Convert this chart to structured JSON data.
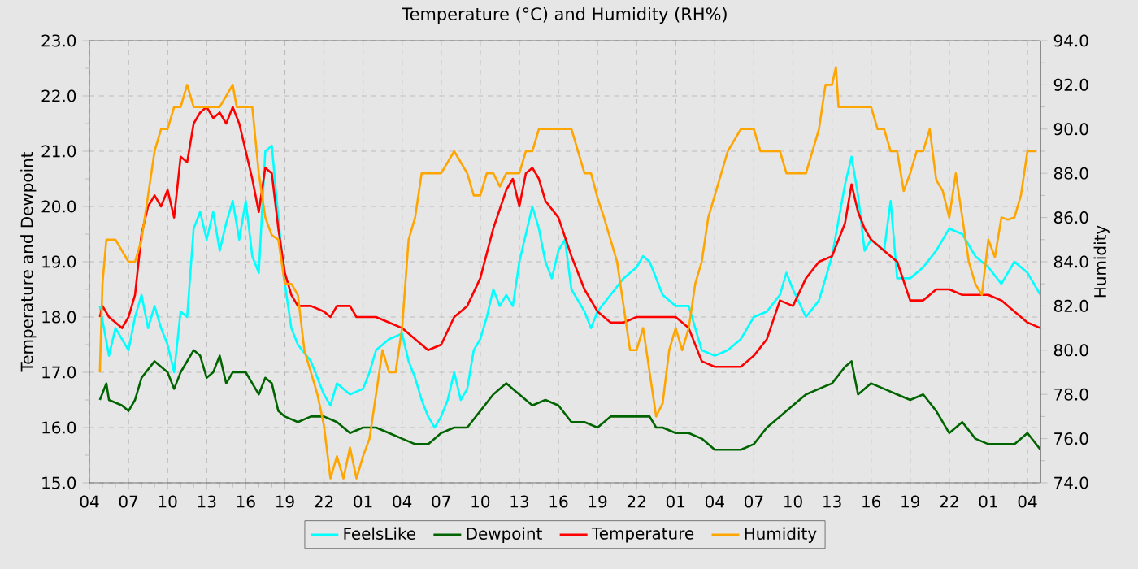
{
  "chart_data": {
    "type": "line",
    "title": "Temperature (°C) and Humidity (RH%)",
    "ylabel": "Temperature and Dewpoint",
    "y2label": "Humidity",
    "xlim": [
      "--01-01T04:00",
      "--01-04T05:00"
    ],
    "xticks": [
      {
        "value": "--01-01T04:00",
        "label": "04"
      },
      {
        "value": "--01-01T07:00",
        "label": "07"
      },
      {
        "value": "--01-01T10:00",
        "label": "10"
      },
      {
        "value": "--01-01T13:00",
        "label": "13"
      },
      {
        "value": "--01-01T16:00",
        "label": "16"
      },
      {
        "value": "--01-01T19:00",
        "label": "19"
      },
      {
        "value": "--01-01T22:00",
        "label": "22"
      },
      {
        "value": "--01-02T01:00",
        "label": "01"
      },
      {
        "value": "--01-02T04:00",
        "label": "04"
      },
      {
        "value": "--01-02T07:00",
        "label": "07"
      },
      {
        "value": "--01-02T10:00",
        "label": "10"
      },
      {
        "value": "--01-02T13:00",
        "label": "13"
      },
      {
        "value": "--01-02T16:00",
        "label": "16"
      },
      {
        "value": "--01-02T19:00",
        "label": "19"
      },
      {
        "value": "--01-02T22:00",
        "label": "22"
      },
      {
        "value": "--01-03T01:00",
        "label": "01"
      },
      {
        "value": "--01-03T04:00",
        "label": "04"
      },
      {
        "value": "--01-03T07:00",
        "label": "07"
      },
      {
        "value": "--01-03T10:00",
        "label": "10"
      },
      {
        "value": "--01-03T13:00",
        "label": "13"
      },
      {
        "value": "--01-03T16:00",
        "label": "16"
      },
      {
        "value": "--01-03T19:00",
        "label": "19"
      },
      {
        "value": "--01-03T22:00",
        "label": "22"
      },
      {
        "value": "--01-04T01:00",
        "label": "01"
      },
      {
        "value": "--01-04T04:00",
        "label": "04"
      }
    ],
    "ylim": [
      15,
      23
    ],
    "yticks": [
      {
        "value": 15,
        "label": "15.0"
      },
      {
        "value": 16,
        "label": "16.0"
      },
      {
        "value": 17,
        "label": "17.0"
      },
      {
        "value": 18,
        "label": "18.0"
      },
      {
        "value": 19,
        "label": "19.0"
      },
      {
        "value": 20,
        "label": "20.0"
      },
      {
        "value": 21,
        "label": "21.0"
      },
      {
        "value": 22,
        "label": "22.0"
      },
      {
        "value": 23,
        "label": "23.0"
      }
    ],
    "y2lim": [
      74,
      94
    ],
    "y2ticks": [
      {
        "value": 74,
        "label": "74.0"
      },
      {
        "value": 76,
        "label": "76.0"
      },
      {
        "value": 78,
        "label": "78.0"
      },
      {
        "value": 80,
        "label": "80.0"
      },
      {
        "value": 82,
        "label": "82.0"
      },
      {
        "value": 84,
        "label": "84.0"
      },
      {
        "value": 86,
        "label": "86.0"
      },
      {
        "value": 88,
        "label": "88.0"
      },
      {
        "value": 90,
        "label": "90.0"
      },
      {
        "value": 92,
        "label": "92.0"
      },
      {
        "value": 94,
        "label": "94.0"
      }
    ],
    "grid": true,
    "legend": "bottom",
    "line_style": "solid",
    "series": [
      {
        "name": "FeelsLike",
        "color": "#00ffff",
        "x": [
          "--01-01T04:48",
          "--01-01T05:30",
          "--01-01T06:00",
          "--01-01T06:30",
          "--01-01T07:00",
          "--01-01T07:30",
          "--01-01T08:00",
          "--01-01T08:30",
          "--01-01T09:00",
          "--01-01T09:30",
          "--01-01T10:00",
          "--01-01T10:30",
          "--01-01T11:00",
          "--01-01T11:30",
          "--01-01T12:00",
          "--01-01T12:30",
          "--01-01T13:00",
          "--01-01T13:30",
          "--01-01T14:00",
          "--01-01T14:30",
          "--01-01T15:00",
          "--01-01T15:30",
          "--01-01T16:00",
          "--01-01T16:30",
          "--01-01T17:00",
          "--01-01T17:30",
          "--01-01T18:00",
          "--01-01T18:30",
          "--01-01T19:00",
          "--01-01T19:30",
          "--01-01T20:00",
          "--01-01T21:00",
          "--01-01T22:00",
          "--01-01T22:30",
          "--01-01T23:00",
          "--01-01T23:30",
          "--01-02T00:00",
          "--01-02T01:00",
          "--01-02T01:30",
          "--01-02T02:00",
          "--01-02T03:00",
          "--01-02T04:00",
          "--01-02T04:30",
          "--01-02T05:00",
          "--01-02T05:30",
          "--01-02T06:00",
          "--01-02T06:30",
          "--01-02T07:00",
          "--01-02T07:30",
          "--01-02T08:00",
          "--01-02T08:30",
          "--01-02T09:00",
          "--01-02T09:30",
          "--01-02T10:00",
          "--01-02T10:30",
          "--01-02T11:00",
          "--01-02T11:30",
          "--01-02T12:00",
          "--01-02T12:30",
          "--01-02T13:00",
          "--01-02T13:30",
          "--01-02T14:00",
          "--01-02T14:30",
          "--01-02T15:00",
          "--01-02T15:30",
          "--01-02T16:00",
          "--01-02T16:30",
          "--01-02T17:00",
          "--01-02T18:00",
          "--01-02T18:30",
          "--01-02T19:00",
          "--01-02T20:00",
          "--01-02T21:00",
          "--01-02T22:00",
          "--01-02T22:30",
          "--01-02T23:00",
          "--01-03T00:00",
          "--01-03T01:00",
          "--01-03T02:00",
          "--01-03T02:30",
          "--01-03T03:00",
          "--01-03T04:00",
          "--01-03T05:00",
          "--01-03T06:00",
          "--01-03T07:00",
          "--01-03T08:00",
          "--01-03T09:00",
          "--01-03T09:30",
          "--01-03T10:00",
          "--01-03T11:00",
          "--01-03T12:00",
          "--01-03T13:00",
          "--01-03T14:00",
          "--01-03T14:30",
          "--01-03T15:00",
          "--01-03T15:30",
          "--01-03T16:00",
          "--01-03T17:00",
          "--01-03T17:30",
          "--01-03T18:00",
          "--01-03T19:00",
          "--01-03T20:00",
          "--01-03T21:00",
          "--01-03T22:00",
          "--01-03T23:00",
          "--01-04T00:00",
          "--01-04T01:00",
          "--01-04T02:00",
          "--01-04T03:00",
          "--01-04T04:00",
          "--01-04T05:00"
        ],
        "values": [
          18.2,
          17.3,
          17.8,
          17.6,
          17.4,
          18.0,
          18.4,
          17.8,
          18.2,
          17.8,
          17.5,
          17.0,
          18.1,
          18.0,
          19.6,
          19.9,
          19.4,
          19.9,
          19.2,
          19.7,
          20.1,
          19.4,
          20.1,
          19.1,
          18.8,
          21.0,
          21.1,
          19.8,
          18.6,
          17.8,
          17.5,
          17.2,
          16.6,
          16.4,
          16.8,
          16.7,
          16.6,
          16.7,
          17.0,
          17.4,
          17.6,
          17.7,
          17.2,
          16.9,
          16.5,
          16.2,
          16.0,
          16.2,
          16.5,
          17.0,
          16.5,
          16.7,
          17.4,
          17.6,
          18.0,
          18.5,
          18.2,
          18.4,
          18.2,
          19.0,
          19.5,
          20.0,
          19.6,
          19.0,
          18.7,
          19.2,
          19.4,
          18.5,
          18.1,
          17.8,
          18.1,
          18.4,
          18.7,
          18.9,
          19.1,
          19.0,
          18.4,
          18.2,
          18.2,
          17.8,
          17.4,
          17.3,
          17.4,
          17.6,
          18.0,
          18.1,
          18.4,
          18.8,
          18.5,
          18.0,
          18.3,
          19.1,
          20.4,
          20.9,
          20.2,
          19.2,
          19.4,
          19.2,
          20.1,
          18.7,
          18.7,
          18.9,
          19.2,
          19.6,
          19.5,
          19.1,
          18.9,
          18.6,
          19.0,
          18.8,
          18.4
        ]
      },
      {
        "name": "Dewpoint",
        "color": "#006400",
        "x": [
          "--01-01T04:48",
          "--01-01T05:18",
          "--01-01T05:30",
          "--01-01T06:30",
          "--01-01T07:00",
          "--01-01T07:30",
          "--01-01T08:00",
          "--01-01T09:00",
          "--01-01T10:00",
          "--01-01T10:30",
          "--01-01T11:00",
          "--01-01T12:00",
          "--01-01T12:30",
          "--01-01T13:00",
          "--01-01T13:30",
          "--01-01T14:00",
          "--01-01T14:30",
          "--01-01T15:00",
          "--01-01T16:00",
          "--01-01T17:00",
          "--01-01T17:30",
          "--01-01T18:00",
          "--01-01T18:30",
          "--01-01T19:00",
          "--01-01T20:00",
          "--01-01T21:00",
          "--01-01T22:00",
          "--01-01T23:00",
          "--01-02T00:00",
          "--01-02T01:00",
          "--01-02T02:00",
          "--01-02T03:00",
          "--01-02T04:00",
          "--01-02T05:00",
          "--01-02T06:00",
          "--01-02T07:00",
          "--01-02T08:00",
          "--01-02T09:00",
          "--01-02T10:00",
          "--01-02T11:00",
          "--01-02T12:00",
          "--01-02T12:30",
          "--01-02T13:00",
          "--01-02T14:00",
          "--01-02T15:00",
          "--01-02T16:00",
          "--01-02T17:00",
          "--01-02T18:00",
          "--01-02T19:00",
          "--01-02T20:00",
          "--01-02T21:00",
          "--01-02T22:00",
          "--01-02T23:00",
          "--01-02T23:30",
          "--01-03T00:00",
          "--01-03T01:00",
          "--01-03T02:00",
          "--01-03T03:00",
          "--01-03T04:00",
          "--01-03T05:00",
          "--01-03T06:00",
          "--01-03T07:00",
          "--01-03T08:00",
          "--01-03T09:00",
          "--01-03T10:00",
          "--01-03T11:00",
          "--01-03T12:00",
          "--01-03T13:00",
          "--01-03T14:00",
          "--01-03T14:30",
          "--01-03T15:00",
          "--01-03T16:00",
          "--01-03T17:00",
          "--01-03T18:00",
          "--01-03T19:00",
          "--01-03T20:00",
          "--01-03T21:00",
          "--01-03T22:00",
          "--01-03T23:00",
          "--01-04T00:00",
          "--01-04T01:00",
          "--01-04T02:00",
          "--01-04T03:00",
          "--01-04T04:00",
          "--01-04T05:00"
        ],
        "values": [
          16.5,
          16.8,
          16.5,
          16.4,
          16.3,
          16.5,
          16.9,
          17.2,
          17.0,
          16.7,
          17.0,
          17.4,
          17.3,
          16.9,
          17.0,
          17.3,
          16.8,
          17.0,
          17.0,
          16.6,
          16.9,
          16.8,
          16.3,
          16.2,
          16.1,
          16.2,
          16.2,
          16.1,
          15.9,
          16.0,
          16.0,
          15.9,
          15.8,
          15.7,
          15.7,
          15.9,
          16.0,
          16.0,
          16.3,
          16.6,
          16.8,
          16.7,
          16.6,
          16.4,
          16.5,
          16.4,
          16.1,
          16.1,
          16.0,
          16.2,
          16.2,
          16.2,
          16.2,
          16.0,
          16.0,
          15.9,
          15.9,
          15.8,
          15.6,
          15.6,
          15.6,
          15.7,
          16.0,
          16.2,
          16.4,
          16.6,
          16.7,
          16.8,
          17.1,
          17.2,
          16.6,
          16.8,
          16.7,
          16.6,
          16.5,
          16.6,
          16.3,
          15.9,
          16.1,
          15.8,
          15.7,
          15.7,
          15.7,
          15.9,
          15.6
        ]
      },
      {
        "name": "Temperature",
        "color": "#ff0000",
        "x": [
          "--01-01T04:48",
          "--01-01T05:00",
          "--01-01T05:30",
          "--01-01T06:00",
          "--01-01T06:30",
          "--01-01T07:00",
          "--01-01T07:30",
          "--01-01T08:00",
          "--01-01T08:30",
          "--01-01T09:00",
          "--01-01T09:30",
          "--01-01T10:00",
          "--01-01T10:30",
          "--01-01T11:00",
          "--01-01T11:30",
          "--01-01T12:00",
          "--01-01T12:30",
          "--01-01T13:00",
          "--01-01T13:30",
          "--01-01T14:00",
          "--01-01T14:30",
          "--01-01T15:00",
          "--01-01T15:30",
          "--01-01T16:00",
          "--01-01T16:30",
          "--01-01T17:00",
          "--01-01T17:30",
          "--01-01T18:00",
          "--01-01T18:30",
          "--01-01T19:00",
          "--01-01T19:30",
          "--01-01T20:00",
          "--01-01T21:00",
          "--01-01T22:00",
          "--01-01T22:30",
          "--01-01T23:00",
          "--01-02T00:00",
          "--01-02T00:30",
          "--01-02T01:00",
          "--01-02T02:00",
          "--01-02T03:00",
          "--01-02T04:00",
          "--01-02T05:00",
          "--01-02T06:00",
          "--01-02T07:00",
          "--01-02T08:00",
          "--01-02T09:00",
          "--01-02T10:00",
          "--01-02T11:00",
          "--01-02T12:00",
          "--01-02T12:30",
          "--01-02T13:00",
          "--01-02T13:30",
          "--01-02T14:00",
          "--01-02T14:30",
          "--01-02T15:00",
          "--01-02T16:00",
          "--01-02T17:00",
          "--01-02T18:00",
          "--01-02T19:00",
          "--01-02T20:00",
          "--01-02T21:00",
          "--01-02T22:00",
          "--01-02T23:00",
          "--01-03T00:00",
          "--01-03T01:00",
          "--01-03T02:00",
          "--01-03T03:00",
          "--01-03T04:00",
          "--01-03T05:00",
          "--01-03T06:00",
          "--01-03T07:00",
          "--01-03T08:00",
          "--01-03T09:00",
          "--01-03T10:00",
          "--01-03T11:00",
          "--01-03T12:00",
          "--01-03T13:00",
          "--01-03T14:00",
          "--01-03T14:30",
          "--01-03T15:00",
          "--01-03T15:30",
          "--01-03T16:00",
          "--01-03T17:00",
          "--01-03T18:00",
          "--01-03T19:00",
          "--01-03T20:00",
          "--01-03T21:00",
          "--01-03T22:00",
          "--01-03T23:00",
          "--01-04T00:00",
          "--01-04T01:00",
          "--01-04T02:00",
          "--01-04T03:00",
          "--01-04T04:00",
          "--01-04T05:00"
        ],
        "values": [
          18.0,
          18.2,
          18.0,
          17.9,
          17.8,
          18.0,
          18.4,
          19.5,
          20.0,
          20.2,
          20.0,
          20.3,
          19.8,
          20.9,
          20.8,
          21.5,
          21.7,
          21.8,
          21.6,
          21.7,
          21.5,
          21.8,
          21.5,
          21.0,
          20.5,
          19.9,
          20.7,
          20.6,
          19.6,
          18.8,
          18.4,
          18.2,
          18.2,
          18.1,
          18.0,
          18.2,
          18.2,
          18.0,
          18.0,
          18.0,
          17.9,
          17.8,
          17.6,
          17.4,
          17.5,
          18.0,
          18.2,
          18.7,
          19.6,
          20.3,
          20.5,
          20.0,
          20.6,
          20.7,
          20.5,
          20.1,
          19.8,
          19.1,
          18.5,
          18.1,
          17.9,
          17.9,
          18.0,
          18.0,
          18.0,
          18.0,
          17.8,
          17.2,
          17.1,
          17.1,
          17.1,
          17.3,
          17.6,
          18.3,
          18.2,
          18.7,
          19.0,
          19.1,
          19.7,
          20.4,
          19.9,
          19.6,
          19.4,
          19.2,
          19.0,
          18.3,
          18.3,
          18.5,
          18.5,
          18.4,
          18.4,
          18.4,
          18.3,
          18.1,
          17.9,
          17.8
        ]
      },
      {
        "name": "Humidity",
        "color": "#ffa500",
        "axis": "y2",
        "x": [
          "--01-01T04:48",
          "--01-01T05:00",
          "--01-01T05:18",
          "--01-01T06:00",
          "--01-01T07:00",
          "--01-01T07:30",
          "--01-01T08:00",
          "--01-01T08:30",
          "--01-01T09:00",
          "--01-01T09:30",
          "--01-01T10:00",
          "--01-01T10:30",
          "--01-01T11:00",
          "--01-01T11:30",
          "--01-01T12:00",
          "--01-01T13:00",
          "--01-01T14:00",
          "--01-01T15:00",
          "--01-01T15:18",
          "--01-01T16:00",
          "--01-01T16:30",
          "--01-01T17:00",
          "--01-01T17:30",
          "--01-01T18:00",
          "--01-01T18:30",
          "--01-01T19:00",
          "--01-01T19:30",
          "--01-01T20:00",
          "--01-01T20:30",
          "--01-01T21:00",
          "--01-01T21:30",
          "--01-01T22:00",
          "--01-01T22:30",
          "--01-01T23:00",
          "--01-01T23:30",
          "--01-02T00:00",
          "--01-02T00:30",
          "--01-02T01:00",
          "--01-02T01:30",
          "--01-02T02:00",
          "--01-02T02:30",
          "--01-02T03:00",
          "--01-02T03:30",
          "--01-02T04:00",
          "--01-02T04:30",
          "--01-02T05:00",
          "--01-02T05:30",
          "--01-02T06:00",
          "--01-02T07:00",
          "--01-02T08:00",
          "--01-02T09:00",
          "--01-02T09:30",
          "--01-02T10:00",
          "--01-02T10:30",
          "--01-02T11:00",
          "--01-02T11:30",
          "--01-02T12:00",
          "--01-02T13:00",
          "--01-02T13:30",
          "--01-02T14:00",
          "--01-02T14:30",
          "--01-02T16:00",
          "--01-02T17:00",
          "--01-02T17:30",
          "--01-02T18:00",
          "--01-02T18:30",
          "--01-02T19:00",
          "--01-02T19:30",
          "--01-02T20:00",
          "--01-02T20:30",
          "--01-02T21:00",
          "--01-02T21:30",
          "--01-02T22:00",
          "--01-02T22:30",
          "--01-02T23:00",
          "--01-02T23:30",
          "--01-03T00:00",
          "--01-03T00:30",
          "--01-03T01:00",
          "--01-03T01:30",
          "--01-03T02:00",
          "--01-03T02:30",
          "--01-03T03:00",
          "--01-03T03:30",
          "--01-03T04:00",
          "--01-03T04:30",
          "--01-03T05:00",
          "--01-03T06:00",
          "--01-03T07:00",
          "--01-03T07:30",
          "--01-03T09:00",
          "--01-03T09:30",
          "--01-03T11:00",
          "--01-03T11:30",
          "--01-03T12:00",
          "--01-03T12:30",
          "--01-03T13:00",
          "--01-03T13:18",
          "--01-03T13:30",
          "--01-03T14:00",
          "--01-03T15:00",
          "--01-03T16:00",
          "--01-03T16:30",
          "--01-03T17:00",
          "--01-03T17:30",
          "--01-03T18:00",
          "--01-03T18:30",
          "--01-03T19:00",
          "--01-03T19:30",
          "--01-03T20:00",
          "--01-03T20:30",
          "--01-03T21:00",
          "--01-03T21:30",
          "--01-03T22:00",
          "--01-03T22:30",
          "--01-03T23:00",
          "--01-03T23:30",
          "--01-04T00:00",
          "--01-04T00:30",
          "--01-04T01:00",
          "--01-04T01:30",
          "--01-04T02:00",
          "--01-04T02:30",
          "--01-04T03:00",
          "--01-04T03:30",
          "--01-04T04:00",
          "--01-04T04:42"
        ],
        "values": [
          79.0,
          83.0,
          85.0,
          85.0,
          84.0,
          84.0,
          85.0,
          87.0,
          89.0,
          90.0,
          90.0,
          91.0,
          91.0,
          92.0,
          91.0,
          91.0,
          91.0,
          92.0,
          91.0,
          91.0,
          91.0,
          88.0,
          86.0,
          85.2,
          85.0,
          83.0,
          83.0,
          82.5,
          80.0,
          79.0,
          78.0,
          76.6,
          74.2,
          75.2,
          74.2,
          75.6,
          74.2,
          75.2,
          76.0,
          78.0,
          80.0,
          79.0,
          79.0,
          81.0,
          85.0,
          86.0,
          88.0,
          88.0,
          88.0,
          89.0,
          88.0,
          87.0,
          87.0,
          88.0,
          88.0,
          87.4,
          88.0,
          88.0,
          89.0,
          89.0,
          90.0,
          90.0,
          90.0,
          89.0,
          88.0,
          88.0,
          86.9,
          86.0,
          85.0,
          84.0,
          82.0,
          80.0,
          80.0,
          81.0,
          79.0,
          77.0,
          77.6,
          80.0,
          81.0,
          80.0,
          81.0,
          83.0,
          84.0,
          86.0,
          87.0,
          88.0,
          89.0,
          90.0,
          90.0,
          89.0,
          89.0,
          88.0,
          88.0,
          89.0,
          90.0,
          92.0,
          92.0,
          92.8,
          91.0,
          91.0,
          91.0,
          91.0,
          90.0,
          90.0,
          89.0,
          89.0,
          87.2,
          88.0,
          89.0,
          89.0,
          90.0,
          87.7,
          87.2,
          86.0,
          88.0,
          86.0,
          84.0,
          83.0,
          82.5,
          85.0,
          84.2,
          86.0,
          85.9,
          86.0,
          87.0,
          89.0,
          89.0
        ]
      }
    ]
  }
}
